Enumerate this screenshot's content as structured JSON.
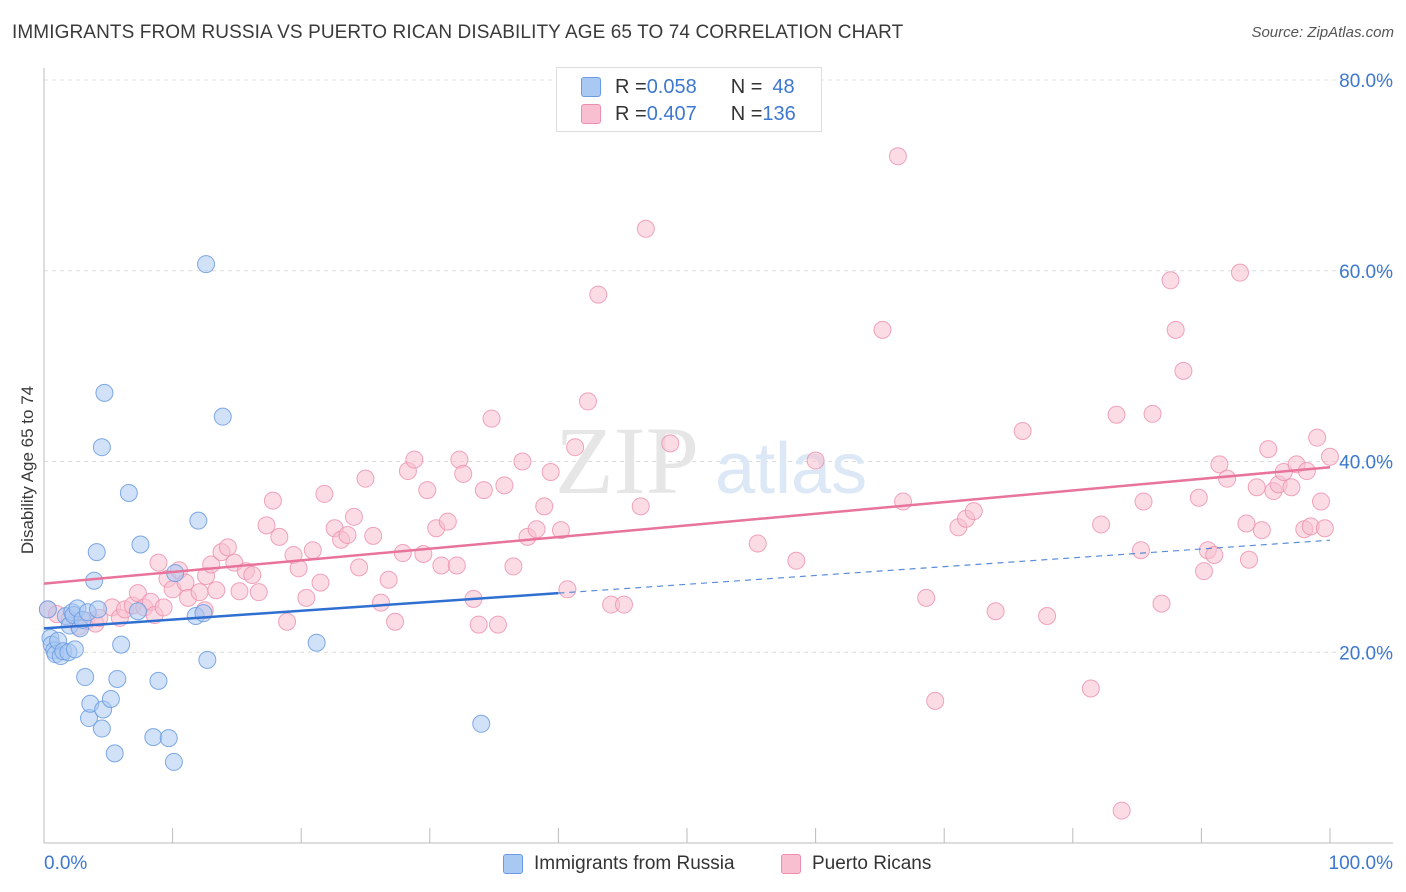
{
  "title": "IMMIGRANTS FROM RUSSIA VS PUERTO RICAN DISABILITY AGE 65 TO 74 CORRELATION CHART",
  "source": "Source: ZipAtlas.com",
  "watermark": "ZIPatlas",
  "legend_stats": [
    {
      "r_label": "R = ",
      "r_value": "0.058",
      "n_label": "N = ",
      "n_value": "48",
      "color": "#a9c8f2",
      "border": "#6a9be0"
    },
    {
      "r_label": "R = ",
      "r_value": "0.407",
      "n_label": "N = ",
      "n_value": "136",
      "color": "#f7bfd0",
      "border": "#ec8fad"
    }
  ],
  "colors": {
    "russia": "#6a9be0",
    "russia_fill": "#a9c8f2",
    "russia_line": "#2f6fd1",
    "pr": "#ec8fad",
    "pr_fill": "#f7bfd0",
    "pr_line": "#e8739b",
    "axis_text": "#3d78cf"
  },
  "chart_data": {
    "type": "scatter",
    "title": "IMMIGRANTS FROM RUSSIA VS PUERTO RICAN DISABILITY AGE 65 TO 74 CORRELATION CHART",
    "xlabel": "",
    "ylabel": "Disability Age 65 to 74",
    "xlim": [
      0,
      100
    ],
    "ylim": [
      0,
      80
    ],
    "x_tick_labels": [
      "0.0%",
      "100.0%"
    ],
    "y_ticks": [
      20,
      40,
      60,
      80
    ],
    "y_tick_labels": [
      "20.0%",
      "40.0%",
      "60.0%",
      "80.0%"
    ],
    "grid": true,
    "legend": "bottom-center",
    "series": [
      {
        "name": "Immigrants from Russia",
        "r": 0.058,
        "n": 48,
        "trend": {
          "x0": 0,
          "y0": 22.5,
          "x1": 40,
          "y1": 26.2
        },
        "points": [
          [
            0.3,
            24.5
          ],
          [
            0.5,
            21.5
          ],
          [
            0.6,
            20.8
          ],
          [
            0.8,
            20.2
          ],
          [
            0.9,
            19.8
          ],
          [
            1.1,
            21.2
          ],
          [
            1.3,
            19.6
          ],
          [
            1.5,
            20.1
          ],
          [
            1.7,
            23.8
          ],
          [
            1.9,
            20.0
          ],
          [
            2.0,
            22.8
          ],
          [
            2.2,
            24.2
          ],
          [
            2.3,
            23.9
          ],
          [
            2.4,
            20.3
          ],
          [
            2.6,
            24.6
          ],
          [
            2.8,
            22.5
          ],
          [
            3.0,
            23.4
          ],
          [
            3.2,
            17.4
          ],
          [
            3.4,
            24.2
          ],
          [
            3.5,
            13.1
          ],
          [
            3.6,
            14.6
          ],
          [
            3.9,
            27.5
          ],
          [
            4.1,
            30.5
          ],
          [
            4.2,
            24.5
          ],
          [
            4.5,
            41.5
          ],
          [
            4.6,
            14.0
          ],
          [
            4.7,
            47.2
          ],
          [
            5.2,
            15.1
          ],
          [
            5.5,
            9.4
          ],
          [
            5.7,
            17.2
          ],
          [
            6.0,
            20.8
          ],
          [
            6.6,
            36.7
          ],
          [
            7.3,
            24.3
          ],
          [
            7.5,
            31.3
          ],
          [
            8.5,
            11.1
          ],
          [
            8.9,
            17.0
          ],
          [
            9.7,
            11.0
          ],
          [
            10.1,
            8.5
          ],
          [
            10.2,
            28.3
          ],
          [
            11.8,
            23.8
          ],
          [
            12.0,
            33.8
          ],
          [
            12.4,
            24.1
          ],
          [
            12.6,
            60.7
          ],
          [
            12.7,
            19.2
          ],
          [
            13.9,
            44.7
          ],
          [
            21.2,
            21.0
          ],
          [
            34.0,
            12.5
          ],
          [
            4.5,
            12.0
          ]
        ]
      },
      {
        "name": "Puerto Ricans",
        "r": 0.407,
        "n": 136,
        "trend": {
          "x0": 0,
          "y0": 27.2,
          "x1": 100,
          "y1": 39.4
        },
        "points": [
          [
            0.3,
            24.5
          ],
          [
            1.0,
            24.0
          ],
          [
            2.0,
            23.5
          ],
          [
            2.7,
            22.7
          ],
          [
            3.3,
            23.3
          ],
          [
            4.0,
            23.0
          ],
          [
            4.3,
            23.6
          ],
          [
            5.3,
            24.7
          ],
          [
            5.9,
            23.6
          ],
          [
            6.3,
            24.5
          ],
          [
            6.9,
            24.9
          ],
          [
            7.3,
            26.2
          ],
          [
            7.8,
            24.7
          ],
          [
            8.3,
            25.3
          ],
          [
            8.6,
            23.9
          ],
          [
            8.9,
            29.4
          ],
          [
            9.3,
            24.7
          ],
          [
            9.6,
            27.7
          ],
          [
            10.0,
            26.6
          ],
          [
            10.5,
            28.6
          ],
          [
            11.0,
            27.3
          ],
          [
            11.2,
            25.7
          ],
          [
            12.1,
            26.3
          ],
          [
            12.5,
            24.4
          ],
          [
            12.6,
            28.0
          ],
          [
            13.0,
            29.2
          ],
          [
            13.4,
            26.5
          ],
          [
            13.8,
            30.5
          ],
          [
            14.3,
            31.0
          ],
          [
            14.8,
            29.4
          ],
          [
            15.2,
            26.4
          ],
          [
            15.7,
            28.5
          ],
          [
            16.2,
            28.1
          ],
          [
            16.7,
            26.3
          ],
          [
            17.3,
            33.3
          ],
          [
            17.8,
            35.9
          ],
          [
            18.3,
            32.1
          ],
          [
            18.9,
            23.2
          ],
          [
            19.4,
            30.2
          ],
          [
            19.8,
            28.8
          ],
          [
            20.4,
            25.7
          ],
          [
            20.9,
            30.7
          ],
          [
            21.5,
            27.3
          ],
          [
            21.8,
            36.6
          ],
          [
            22.6,
            33.0
          ],
          [
            23.1,
            31.8
          ],
          [
            23.6,
            32.3
          ],
          [
            24.1,
            34.2
          ],
          [
            24.5,
            28.9
          ],
          [
            25.0,
            38.2
          ],
          [
            25.6,
            32.2
          ],
          [
            26.2,
            25.2
          ],
          [
            26.8,
            27.6
          ],
          [
            27.3,
            23.2
          ],
          [
            27.9,
            30.4
          ],
          [
            28.3,
            39.0
          ],
          [
            28.8,
            40.2
          ],
          [
            29.5,
            30.3
          ],
          [
            29.8,
            37.0
          ],
          [
            30.5,
            33.0
          ],
          [
            30.9,
            29.1
          ],
          [
            31.4,
            33.7
          ],
          [
            32.1,
            29.1
          ],
          [
            32.3,
            40.2
          ],
          [
            32.6,
            38.7
          ],
          [
            33.4,
            25.6
          ],
          [
            33.8,
            22.9
          ],
          [
            34.2,
            37.0
          ],
          [
            34.8,
            44.5
          ],
          [
            35.3,
            22.9
          ],
          [
            35.8,
            37.5
          ],
          [
            36.5,
            29.0
          ],
          [
            37.2,
            40.0
          ],
          [
            37.6,
            32.1
          ],
          [
            38.3,
            32.9
          ],
          [
            38.9,
            35.3
          ],
          [
            39.4,
            38.9
          ],
          [
            40.2,
            32.8
          ],
          [
            40.7,
            26.6
          ],
          [
            41.3,
            41.5
          ],
          [
            42.3,
            46.3
          ],
          [
            43.1,
            57.5
          ],
          [
            44.1,
            25.0
          ],
          [
            45.1,
            25.0
          ],
          [
            46.4,
            35.3
          ],
          [
            46.8,
            64.4
          ],
          [
            48.7,
            41.9
          ],
          [
            55.5,
            31.4
          ],
          [
            58.5,
            29.6
          ],
          [
            60.0,
            40.1
          ],
          [
            65.2,
            53.8
          ],
          [
            66.4,
            72.0
          ],
          [
            66.8,
            35.8
          ],
          [
            68.6,
            25.7
          ],
          [
            69.3,
            14.9
          ],
          [
            71.1,
            33.1
          ],
          [
            71.7,
            34.0
          ],
          [
            72.3,
            34.8
          ],
          [
            74.0,
            24.3
          ],
          [
            76.1,
            43.2
          ],
          [
            78.0,
            23.8
          ],
          [
            81.4,
            16.2
          ],
          [
            82.2,
            33.4
          ],
          [
            83.4,
            44.9
          ],
          [
            83.8,
            3.4
          ],
          [
            85.3,
            30.7
          ],
          [
            85.5,
            35.8
          ],
          [
            86.2,
            45.0
          ],
          [
            86.9,
            25.1
          ],
          [
            87.6,
            59.0
          ],
          [
            88.0,
            53.8
          ],
          [
            88.6,
            49.5
          ],
          [
            89.8,
            36.2
          ],
          [
            90.2,
            28.5
          ],
          [
            90.5,
            30.7
          ],
          [
            91.0,
            30.2
          ],
          [
            91.4,
            39.7
          ],
          [
            92.0,
            38.2
          ],
          [
            93.0,
            59.8
          ],
          [
            93.7,
            29.7
          ],
          [
            94.3,
            37.3
          ],
          [
            94.7,
            32.8
          ],
          [
            95.2,
            41.3
          ],
          [
            95.6,
            36.9
          ],
          [
            96.0,
            37.6
          ],
          [
            96.4,
            38.9
          ],
          [
            97.0,
            37.3
          ],
          [
            97.4,
            39.7
          ],
          [
            98.0,
            32.9
          ],
          [
            98.5,
            33.2
          ],
          [
            99.0,
            42.5
          ],
          [
            99.3,
            35.8
          ],
          [
            100.0,
            40.5
          ],
          [
            99.6,
            33.0
          ],
          [
            98.2,
            39.0
          ],
          [
            93.5,
            33.5
          ]
        ]
      }
    ]
  },
  "axis_labels": {
    "x_min": "0.0%",
    "x_max": "100.0%"
  },
  "legend_bottom": [
    "Immigrants from Russia",
    "Puerto Ricans"
  ]
}
